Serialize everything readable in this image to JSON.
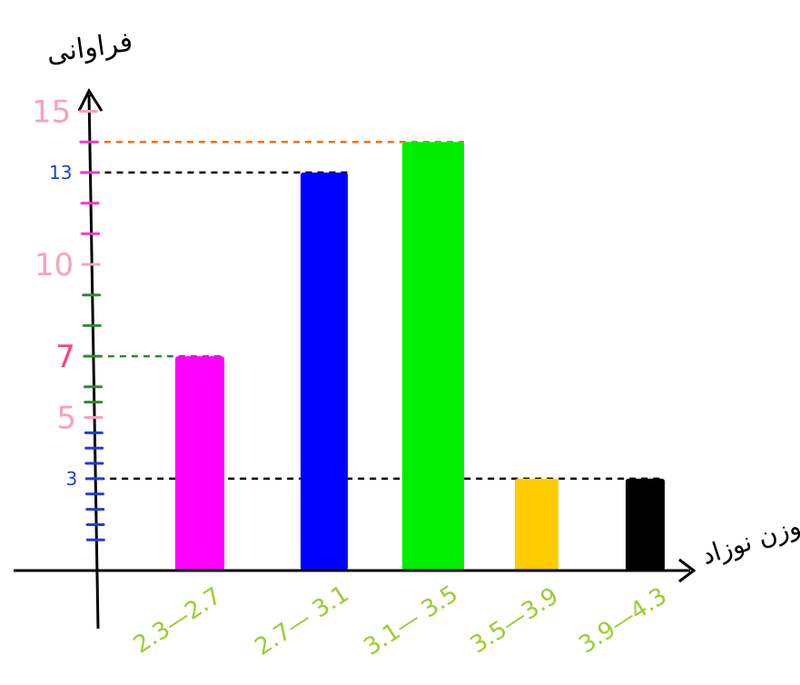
{
  "chart_data": {
    "type": "bar",
    "xlabel": "وزن نوزاد",
    "ylabel": "فراوانی",
    "categories": [
      "2.3—2.7",
      "2.7— 3.1",
      "3.1— 3.5",
      "3.5—3.9",
      "3.9—4.3"
    ],
    "values": [
      7,
      13,
      14,
      3,
      3
    ],
    "bar_colors": [
      "#ff00ff",
      "#0000ff",
      "#00ee00",
      "#ffcc00",
      "#000000"
    ],
    "ylim": [
      0,
      16
    ],
    "y_tick_labels": [
      {
        "value": 3,
        "label": "3",
        "color": "#1f3fd0"
      },
      {
        "value": 5,
        "label": "5",
        "color": "#f7a1c4"
      },
      {
        "value": 7,
        "label": "7",
        "color": "#ff3f86"
      },
      {
        "value": 10,
        "label": "10",
        "color": "#f7a1c4"
      },
      {
        "value": 13,
        "label": "13",
        "color": "#1f3fd0"
      },
      {
        "value": 15,
        "label": "15",
        "color": "#f7a1c4"
      }
    ],
    "reference_lines": [
      {
        "value": 14,
        "to_bar": 2,
        "color": "#ff6a00"
      },
      {
        "value": 13,
        "to_bar": 1,
        "color": "#000000"
      },
      {
        "value": 7,
        "to_bar": 0,
        "color": "#2e8b2e"
      },
      {
        "value": 3,
        "to_bar": 4,
        "color": "#000000"
      }
    ],
    "grid": false,
    "legend": "none"
  },
  "colors": {
    "axis": "#000000",
    "category_label": "#9acd32"
  }
}
